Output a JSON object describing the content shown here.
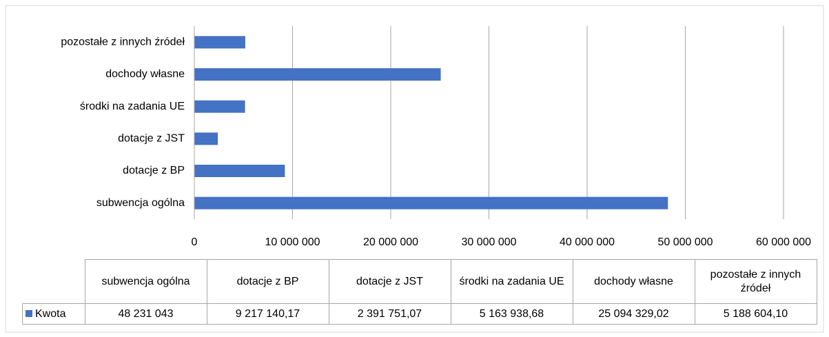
{
  "chart_data": {
    "type": "bar",
    "orientation": "horizontal",
    "categories": [
      "subwencja ogólna",
      "dotacje z BP",
      "dotacje z JST",
      "środki na zadania UE",
      "dochody własne",
      "pozostałe z innych źródeł"
    ],
    "series": [
      {
        "name": "Kwota",
        "color": "#4472c4",
        "values": [
          48231043,
          9217140.17,
          2391751.07,
          5163938.68,
          25094329.02,
          5188604.1
        ],
        "value_labels": [
          "48 231 043",
          "9 217 140,17",
          "2 391 751,07",
          "5 163 938,68",
          "25 094 329,02",
          "5 188 604,10"
        ]
      }
    ],
    "xlim": [
      0,
      60000000
    ],
    "xticks": [
      0,
      {
        "value": 10000000,
        "label": "10 000 000"
      },
      {
        "value": 20000000,
        "label": "20 000 000"
      },
      {
        "value": 30000000,
        "label": "30 000 000"
      },
      {
        "value": 40000000,
        "label": "40 000 000"
      },
      {
        "value": 50000000,
        "label": "50 000 000"
      },
      {
        "value": 60000000,
        "label": "60 000 000"
      }
    ],
    "grid": true
  }
}
